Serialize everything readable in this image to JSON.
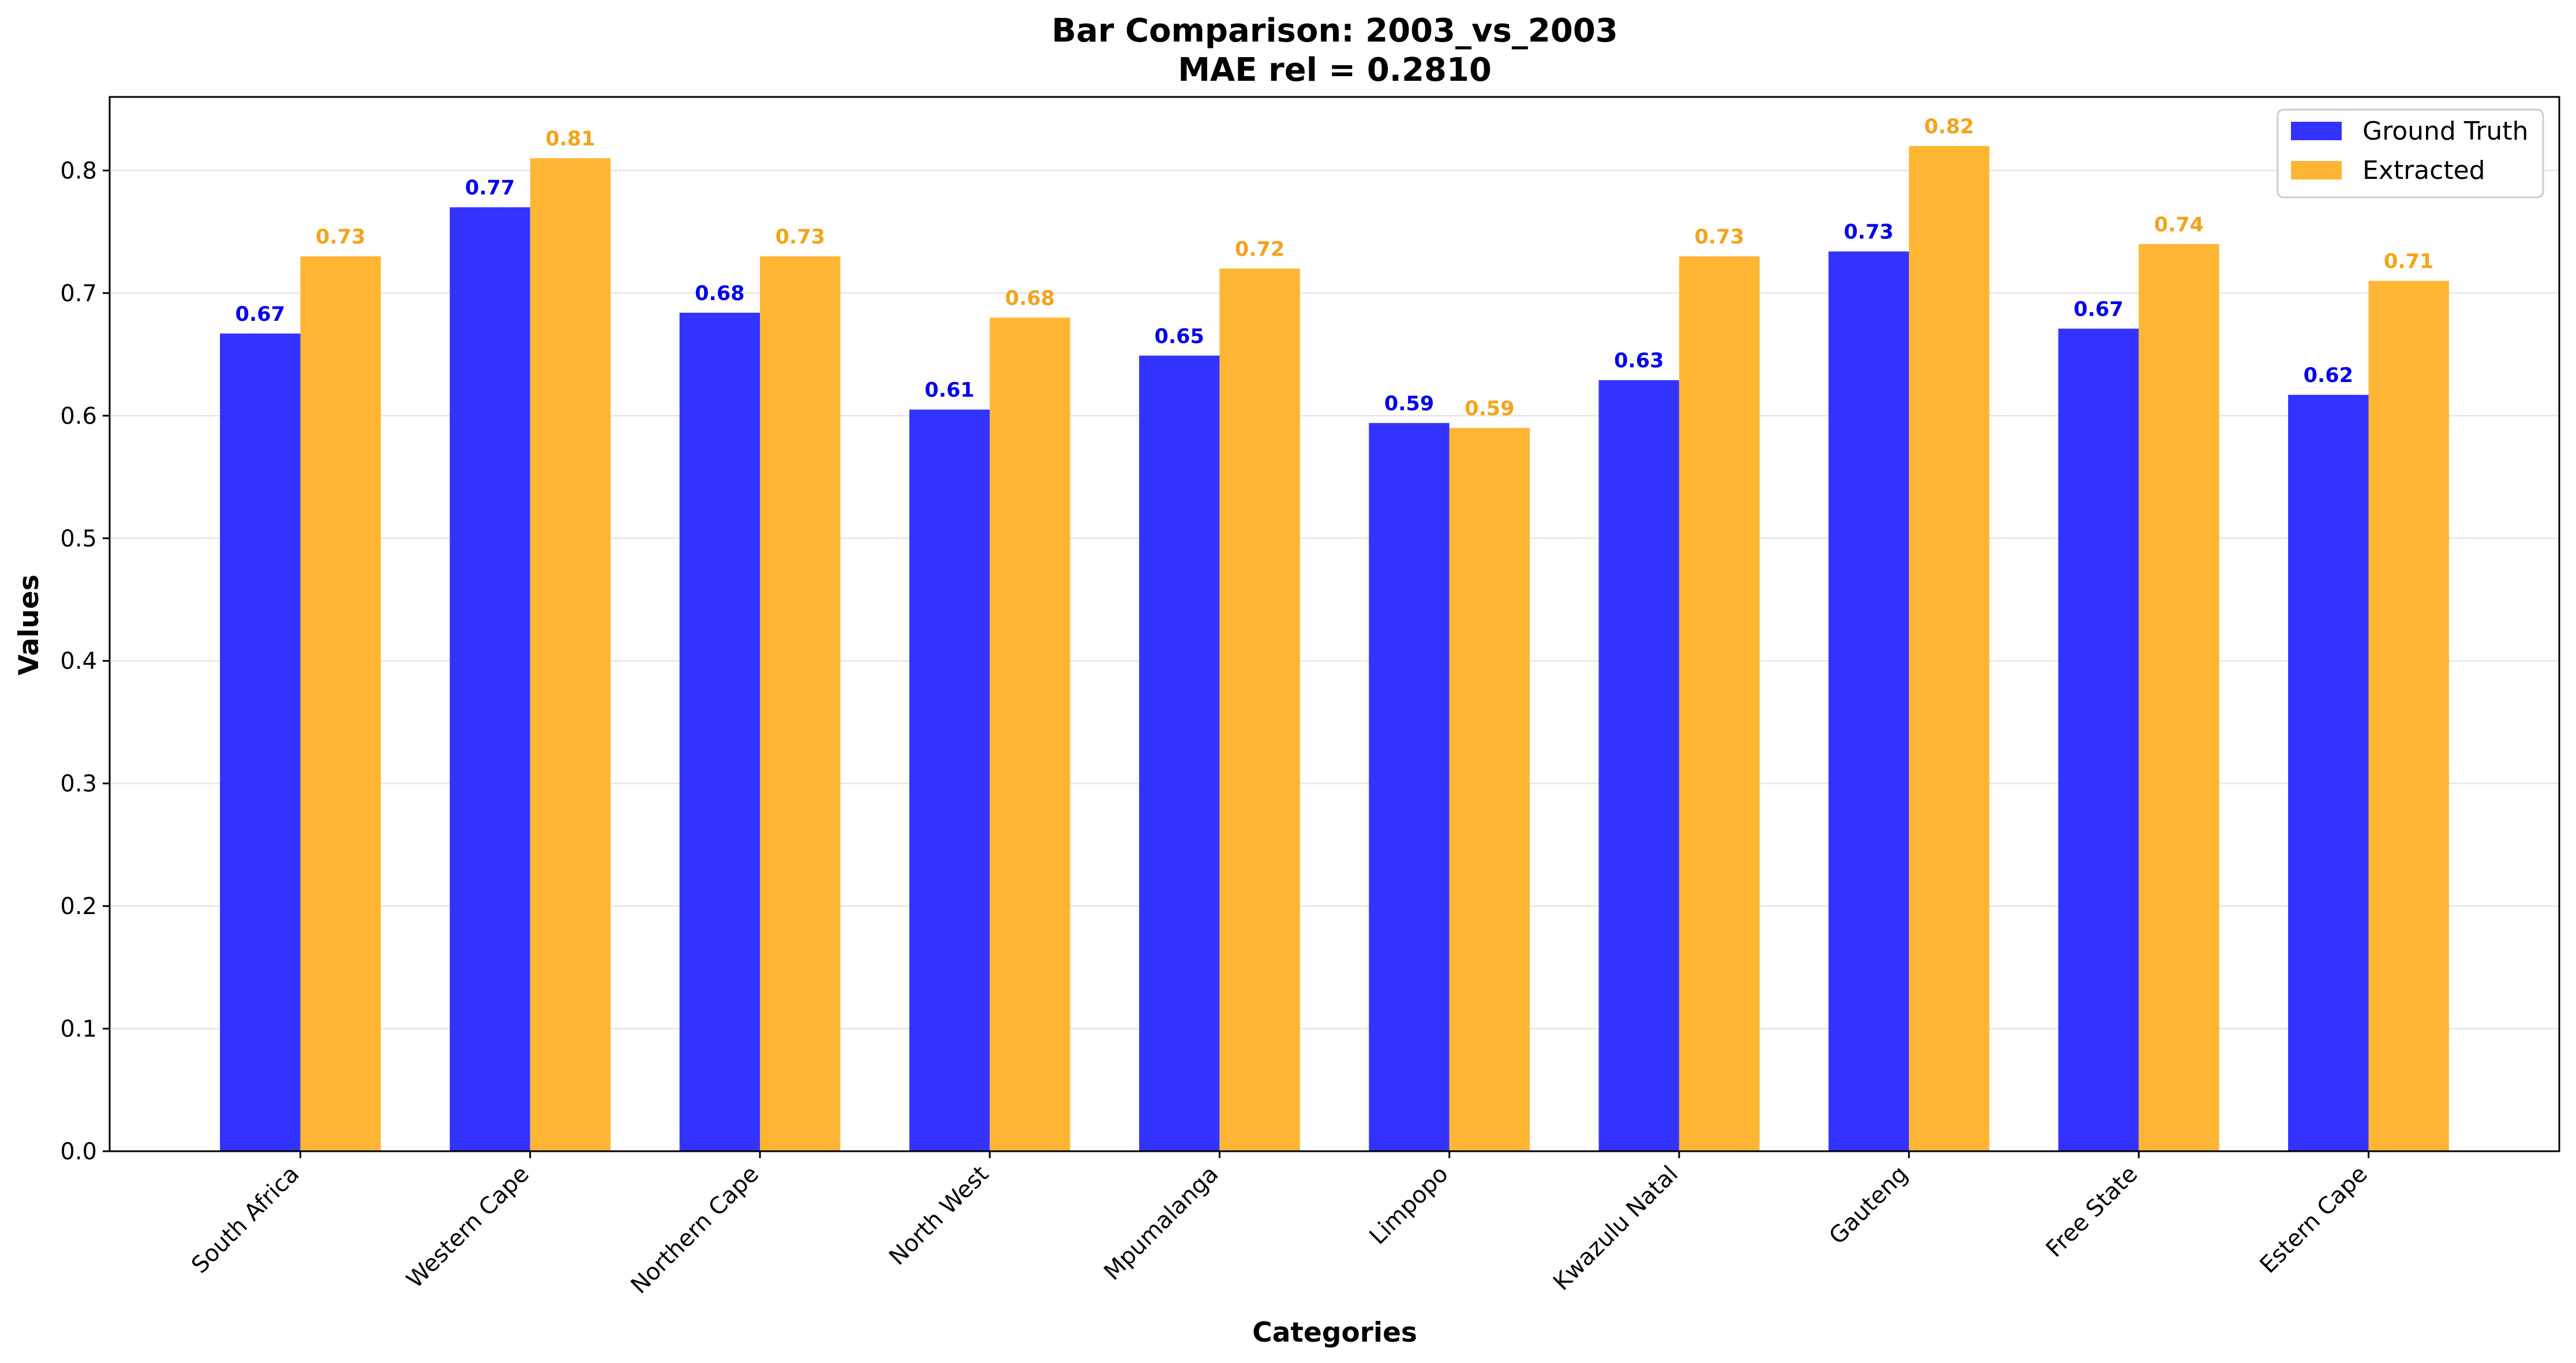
{
  "chart_data": {
    "type": "bar",
    "title": "Bar Comparison: 2003_vs_2003",
    "subtitle": "MAE rel = 0.2810",
    "xlabel": "Categories",
    "ylabel": "Values",
    "ylim": [
      0,
      0.86
    ],
    "yticks": [
      "0.0",
      "0.1",
      "0.2",
      "0.3",
      "0.4",
      "0.5",
      "0.6",
      "0.7",
      "0.8"
    ],
    "grid": true,
    "legend_position": "top-right",
    "categories": [
      "South Africa",
      "Western Cape",
      "Northern Cape",
      "North West",
      "Mpumalanga",
      "Limpopo",
      "Kwazulu Natal",
      "Gauteng",
      "Free State",
      "Estern Cape"
    ],
    "series": [
      {
        "name": "Ground Truth",
        "color": "#3333ff",
        "label_color": "#0000ee",
        "values": [
          0.667,
          0.77,
          0.684,
          0.605,
          0.649,
          0.594,
          0.629,
          0.734,
          0.671,
          0.617
        ],
        "labels": [
          "0.67",
          "0.77",
          "0.68",
          "0.61",
          "0.65",
          "0.59",
          "0.63",
          "0.73",
          "0.67",
          "0.62"
        ]
      },
      {
        "name": "Extracted",
        "color": "#ffb534",
        "label_color": "#f5a31a",
        "values": [
          0.73,
          0.81,
          0.73,
          0.68,
          0.72,
          0.59,
          0.73,
          0.82,
          0.74,
          0.71
        ],
        "labels": [
          "0.73",
          "0.81",
          "0.73",
          "0.68",
          "0.72",
          "0.59",
          "0.73",
          "0.82",
          "0.74",
          "0.71"
        ]
      }
    ]
  }
}
